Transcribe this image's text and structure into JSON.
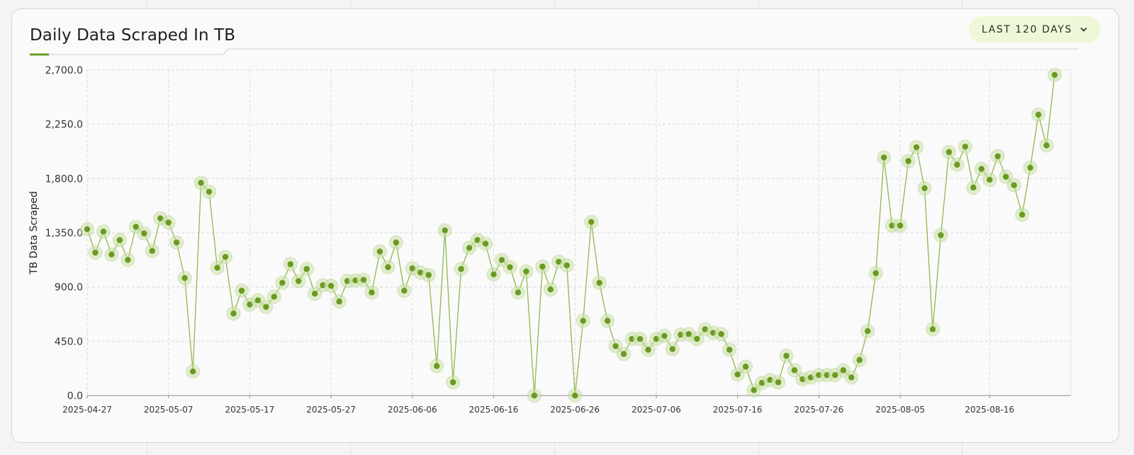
{
  "widget": {
    "title": "Daily Data Scraped In TB",
    "range_label": "LAST 120 DAYS",
    "range_icon": "chevron-down-icon",
    "accent_color": "#6b9a22",
    "button_bg": "#eef8d8"
  },
  "chart_data": {
    "type": "line",
    "title": "Daily Data Scraped In TB",
    "xlabel": "",
    "ylabel": "TB Data Scraped",
    "ylim": [
      0,
      2700
    ],
    "yticks": [
      0,
      450,
      900,
      1350,
      1800,
      2250,
      2700
    ],
    "ytick_labels": [
      "0.0",
      "450.0",
      "900.0",
      "1,350.0",
      "1,800.0",
      "2,250.0",
      "2,700.0"
    ],
    "xticks": [
      "2025-04-27",
      "2025-05-07",
      "2025-05-17",
      "2025-05-27",
      "2025-06-06",
      "2025-06-16",
      "2025-06-26",
      "2025-07-06",
      "2025-07-16",
      "2025-07-26",
      "2025-08-05",
      "2025-08-16"
    ],
    "x_start": "2025-04-27",
    "x_end": "2025-08-26",
    "grid": true,
    "series": [
      {
        "color": "#6b9a22",
        "values": [
          1380,
          1185,
          1360,
          1170,
          1290,
          1125,
          1400,
          1345,
          1200,
          1470,
          1435,
          1270,
          975,
          200,
          1765,
          1690,
          1060,
          1150,
          680,
          870,
          755,
          790,
          735,
          820,
          935,
          1090,
          950,
          1050,
          845,
          915,
          910,
          780,
          950,
          955,
          960,
          855,
          1195,
          1065,
          1270,
          870,
          1055,
          1020,
          1000,
          245,
          1370,
          110,
          1050,
          1225,
          1290,
          1260,
          1005,
          1125,
          1065,
          855,
          1030,
          0,
          1070,
          880,
          1110,
          1080,
          0,
          620,
          1440,
          935,
          620,
          410,
          345,
          470,
          470,
          380,
          470,
          495,
          385,
          505,
          510,
          470,
          550,
          520,
          510,
          380,
          175,
          240,
          45,
          105,
          130,
          110,
          330,
          210,
          135,
          150,
          170,
          170,
          170,
          210,
          150,
          295,
          535,
          1015,
          1975,
          1410,
          1410,
          1945,
          2060,
          1720,
          550,
          1330,
          2020,
          1915,
          2065,
          1725,
          1880,
          1790,
          1985,
          1815,
          1745,
          1500,
          1890,
          2330,
          2075,
          2660
        ]
      }
    ]
  }
}
